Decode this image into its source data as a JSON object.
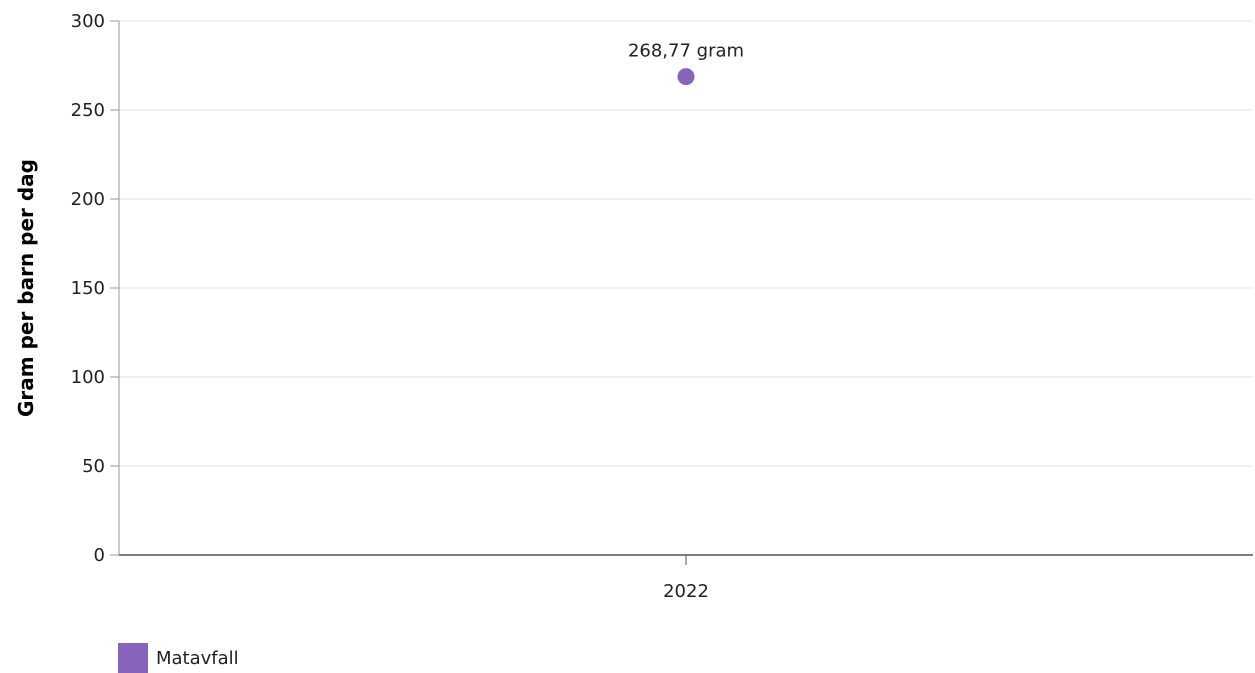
{
  "chart_data": {
    "type": "scatter",
    "title": "",
    "xlabel": "",
    "ylabel": "Gram per barn per dag",
    "categories": [
      "2022"
    ],
    "ylim": [
      0,
      300
    ],
    "yticks": [
      0,
      50,
      100,
      150,
      200,
      250,
      300
    ],
    "grid": true,
    "legend_position": "bottom-left",
    "series": [
      {
        "name": "Matavfall",
        "color": "#8763bb",
        "values": [
          268.77
        ],
        "labels": [
          "268,77 gram"
        ]
      }
    ]
  }
}
